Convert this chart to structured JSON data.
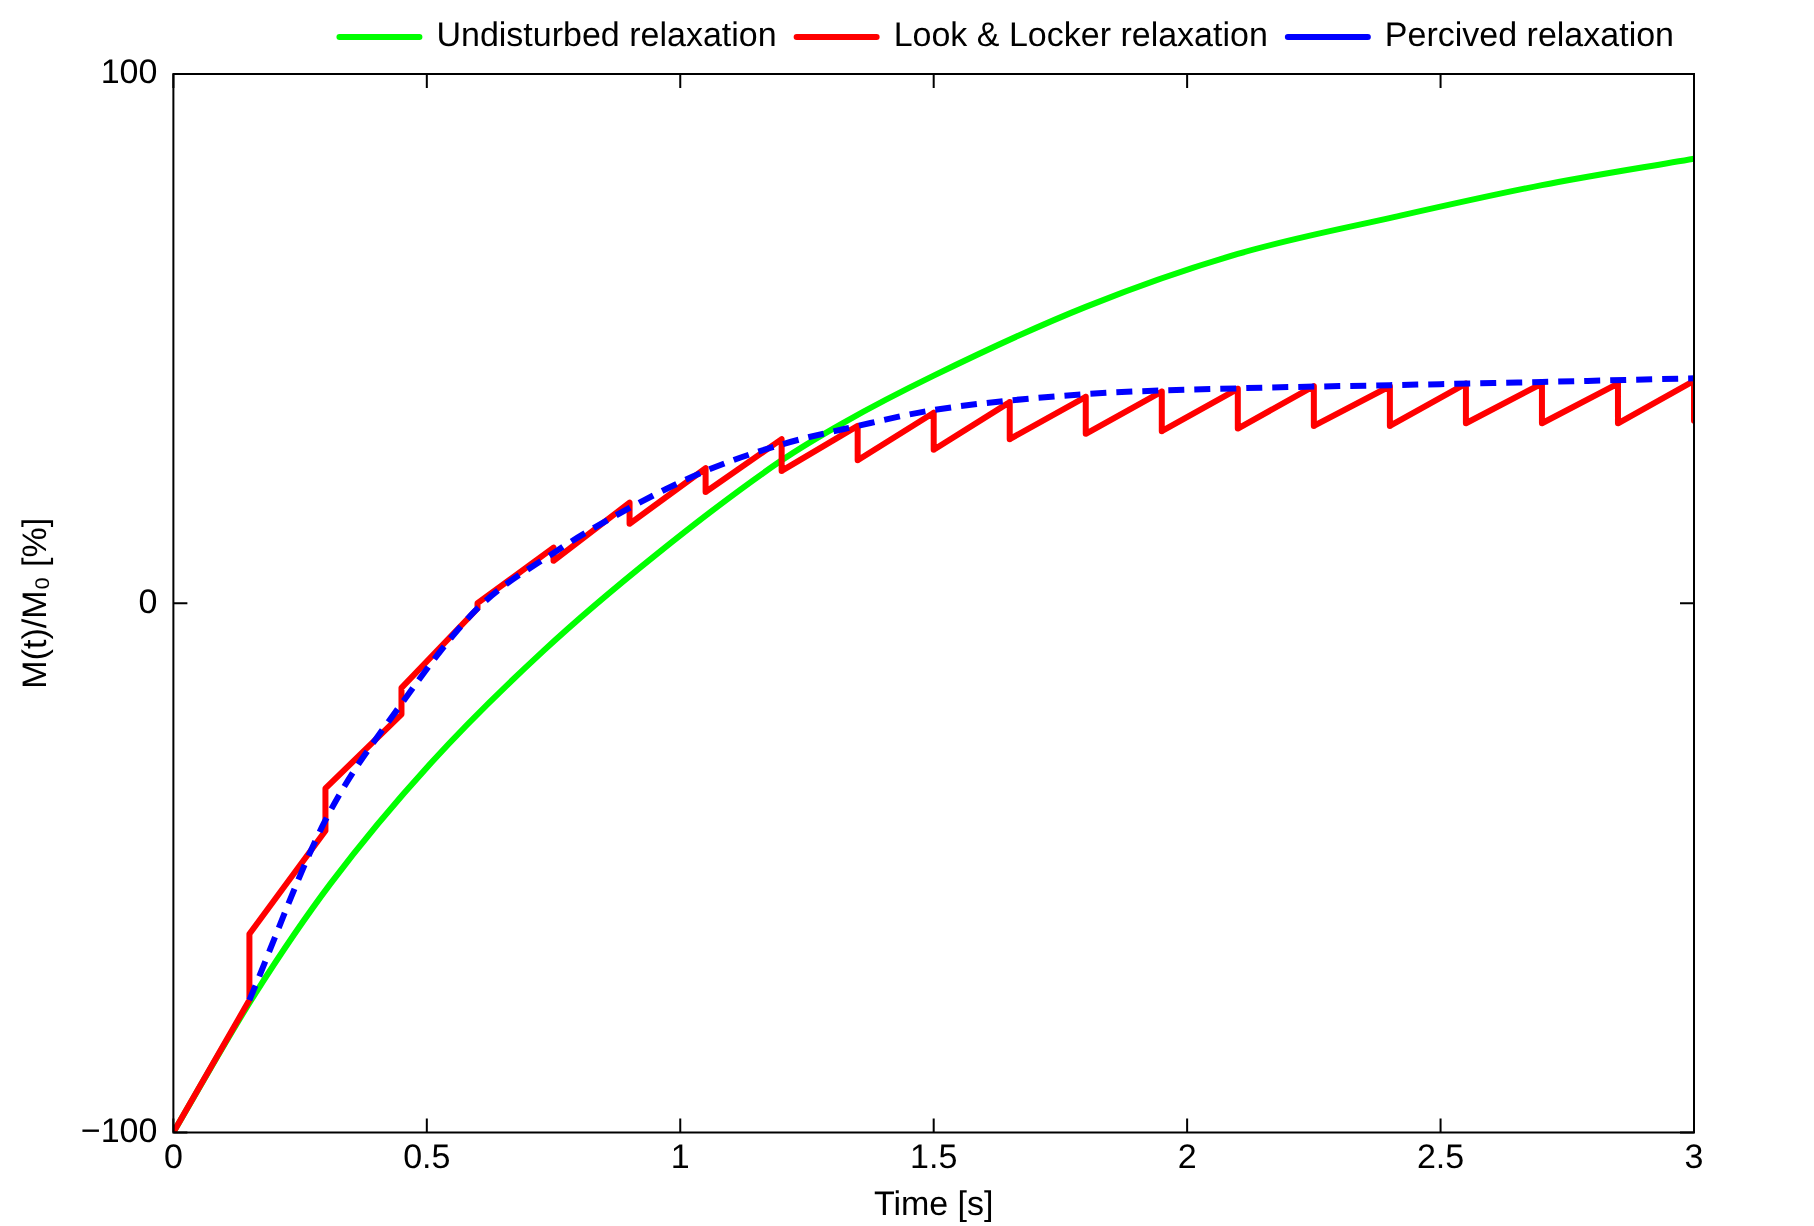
{
  "chart_data": {
    "type": "line",
    "xlabel": "Time [s]",
    "ylabel": "M(t)/M₀ [%]",
    "xlim": [
      0,
      3
    ],
    "xticks": [
      0,
      0.5,
      1,
      1.5,
      2,
      2.5,
      3
    ],
    "ylim": [
      -100,
      100
    ],
    "yticks": [
      {
        "value": -100,
        "label": "−100"
      },
      0,
      100
    ],
    "grid": false,
    "legend": "top",
    "series": [
      {
        "name": "Undisturbed relaxation",
        "color": "#00ff00",
        "line_style": "solid",
        "x": [
          0,
          0.16,
          0.31,
          0.51,
          0.73,
          0.95,
          1.2,
          1.32,
          1.5,
          1.8,
          2.1,
          2.41,
          2.7,
          3
        ],
        "values": [
          -100,
          -74,
          -53,
          -30,
          -9,
          9,
          27,
          34,
          43,
          56,
          66,
          73,
          79,
          84
        ]
      },
      {
        "name": "Look & Locker relaxation",
        "color": "#ff0000",
        "line_style": "solid",
        "x": [
          0,
          0.15,
          0.15,
          0.3,
          0.3,
          0.45,
          0.45,
          0.6,
          0.6,
          0.75,
          0.75,
          0.9,
          0.9,
          1.05,
          1.05,
          1.2,
          1.2,
          1.35,
          1.35,
          1.5,
          1.5,
          1.65,
          1.65,
          1.8,
          1.8,
          1.95,
          1.95,
          2.1,
          2.1,
          2.25,
          2.25,
          2.4,
          2.4,
          2.55,
          2.55,
          2.7,
          2.7,
          2.85,
          2.85,
          3,
          3
        ],
        "values": [
          -100,
          -75,
          -62.5,
          -43,
          -35,
          -21,
          -16,
          -1,
          0,
          10.5,
          8,
          19,
          15,
          25.5,
          21,
          31,
          25,
          33.5,
          27,
          36,
          29,
          38,
          31,
          39,
          32,
          40,
          32.5,
          40.5,
          33,
          41,
          33.5,
          41,
          33.5,
          41.5,
          34,
          41.5,
          34,
          41.5,
          34,
          42,
          34.5
        ]
      },
      {
        "name": "Percived relaxation",
        "color": "#0000ff",
        "line_style": "dashed",
        "x": [
          0.15,
          0.3,
          0.45,
          0.6,
          0.75,
          0.9,
          1.05,
          1.2,
          1.35,
          1.5,
          1.8,
          2.1,
          2.4,
          2.7,
          3
        ],
        "values": [
          -75,
          -41,
          -19,
          -1,
          9.5,
          18,
          25,
          30,
          33.5,
          36.5,
          39.5,
          40.6,
          41.2,
          41.8,
          42.5
        ]
      }
    ]
  }
}
